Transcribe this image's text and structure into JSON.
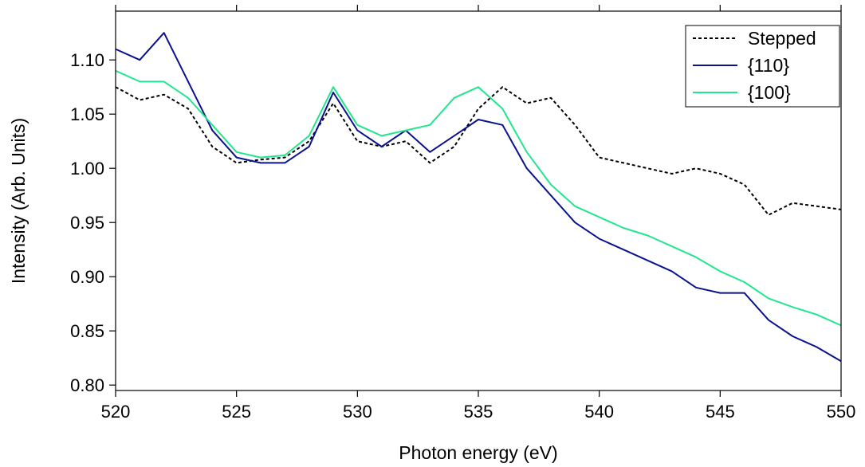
{
  "chart_data": {
    "type": "line",
    "xlabel": "Photon energy (eV)",
    "ylabel": "Intensity (Arb. Units)",
    "xlim": [
      520,
      550
    ],
    "ylim": [
      0.795,
      1.145
    ],
    "x_ticks": [
      520,
      525,
      530,
      535,
      540,
      545,
      550
    ],
    "y_ticks": [
      0.8,
      0.85,
      0.9,
      0.95,
      1.0,
      1.05,
      1.1
    ],
    "x_tick_labels": [
      "520",
      "525",
      "530",
      "535",
      "540",
      "545",
      "550"
    ],
    "y_tick_labels": [
      "0.80",
      "0.85",
      "0.90",
      "0.95",
      "1.00",
      "1.05",
      "1.10"
    ],
    "grid": false,
    "legend_position": "top-right",
    "series": [
      {
        "name": "Stepped",
        "color": "#000000",
        "style": "dashed",
        "x": [
          520,
          521,
          522,
          523,
          524,
          525,
          526,
          527,
          528,
          529,
          530,
          531,
          532,
          533,
          534,
          535,
          536,
          537,
          538,
          539,
          540,
          541,
          542,
          543,
          544,
          545,
          546,
          547,
          548,
          549,
          550
        ],
        "y": [
          1.075,
          1.063,
          1.068,
          1.055,
          1.02,
          1.005,
          1.008,
          1.01,
          1.025,
          1.06,
          1.025,
          1.02,
          1.025,
          1.005,
          1.02,
          1.055,
          1.075,
          1.06,
          1.065,
          1.04,
          1.01,
          1.005,
          1.0,
          0.995,
          1.0,
          0.995,
          0.985,
          0.957,
          0.968,
          0.965,
          0.962
        ]
      },
      {
        "name": "{110}",
        "color": "#0a128e",
        "style": "solid",
        "x": [
          520,
          521,
          522,
          523,
          524,
          525,
          526,
          527,
          528,
          529,
          530,
          531,
          532,
          533,
          534,
          535,
          536,
          537,
          538,
          539,
          540,
          541,
          542,
          543,
          544,
          545,
          546,
          547,
          548,
          549,
          550
        ],
        "y": [
          1.11,
          1.1,
          1.125,
          1.08,
          1.035,
          1.01,
          1.005,
          1.005,
          1.02,
          1.07,
          1.035,
          1.02,
          1.035,
          1.015,
          1.03,
          1.045,
          1.04,
          1.0,
          0.975,
          0.95,
          0.935,
          0.925,
          0.915,
          0.905,
          0.89,
          0.885,
          0.885,
          0.86,
          0.845,
          0.835,
          0.822
        ]
      },
      {
        "name": "{100}",
        "color": "#22e68e",
        "style": "solid",
        "x": [
          520,
          521,
          522,
          523,
          524,
          525,
          526,
          527,
          528,
          529,
          530,
          531,
          532,
          533,
          534,
          535,
          536,
          537,
          538,
          539,
          540,
          541,
          542,
          543,
          544,
          545,
          546,
          547,
          548,
          549,
          550
        ],
        "y": [
          1.09,
          1.08,
          1.08,
          1.065,
          1.04,
          1.015,
          1.01,
          1.012,
          1.03,
          1.075,
          1.04,
          1.03,
          1.035,
          1.04,
          1.065,
          1.075,
          1.055,
          1.015,
          0.985,
          0.965,
          0.955,
          0.945,
          0.938,
          0.928,
          0.918,
          0.905,
          0.895,
          0.88,
          0.872,
          0.865,
          0.855
        ]
      }
    ]
  }
}
